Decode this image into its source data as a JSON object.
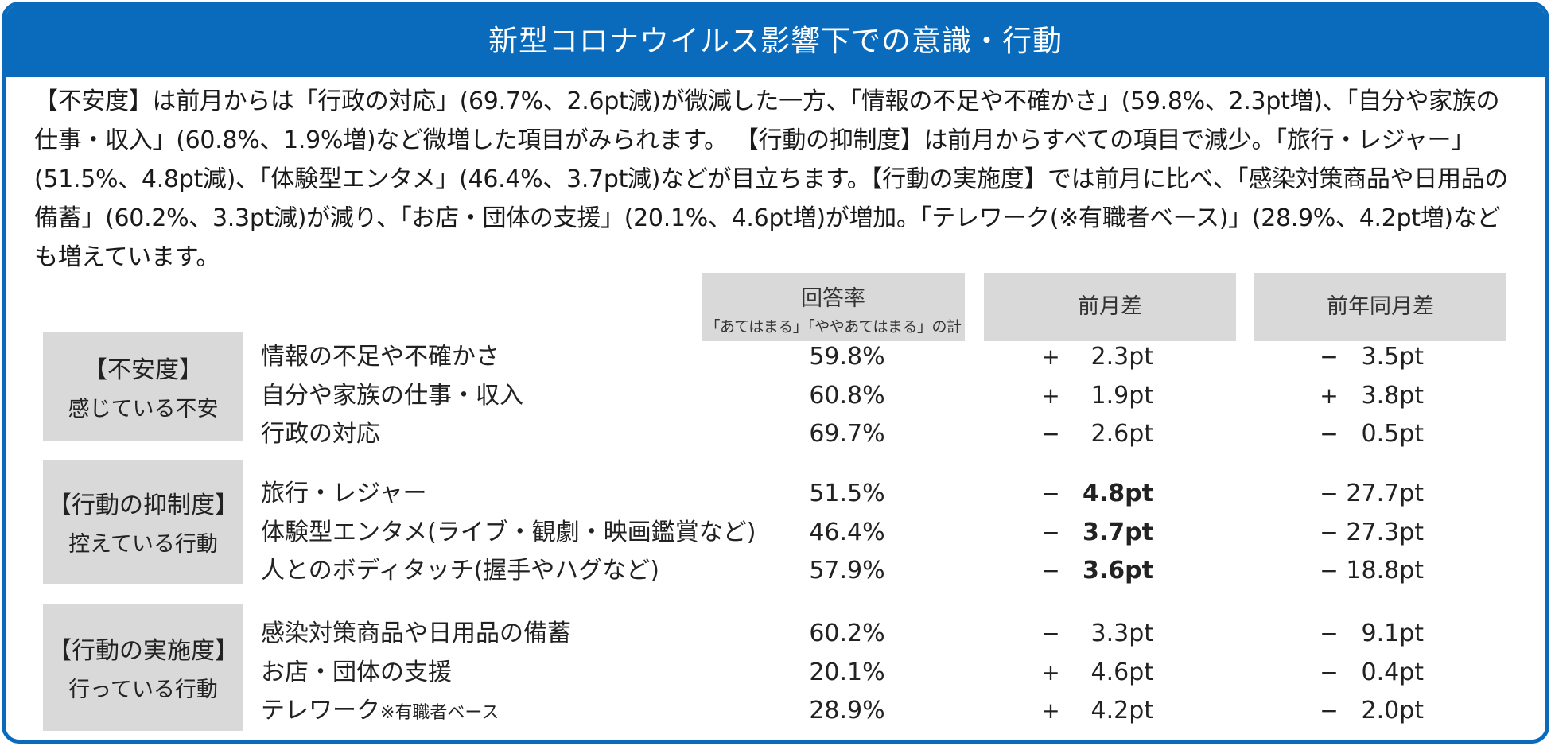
{
  "title": "新型コロナウイルス影響下での意識・行動",
  "summary": "【不安度】は前月からは「行政の対応」(69.7%、2.6pt減)が微減した一方、「情報の不足や不確かさ」(59.8%、2.3pt増)、「自分や家族の仕事・収入」(60.8%、1.9%増)など微増した項目がみられます。 【行動の抑制度】は前月からすべての項目で減少。「旅行・レジャー」(51.5%、4.8pt減)、「体験型エンタメ」(46.4%、3.7pt減)などが目立ちます。【行動の実施度】では前月に比べ、「感染対策商品や日用品の備蓄」(60.2%、3.3pt減)が減り、「お店・団体の支援」(20.1%、4.6pt増)が増加。「テレワーク(※有職者ベース)」(28.9%、4.2pt増)なども増えています。",
  "headers": {
    "rate": "回答率",
    "rate_sub": "「あてはまる」「ややあてはまる」の計",
    "diff": "前月差",
    "yoy": "前年同月差"
  },
  "categories": [
    {
      "title": "【不安度】",
      "sub": "感じている不安",
      "rows": [
        {
          "item": "情報の不足や不確かさ",
          "note": "",
          "rate": "59.8%",
          "diff_sign": "+",
          "diff": "2.3pt",
          "yoy_sign": "−",
          "yoy": "3.5pt"
        },
        {
          "item": "自分や家族の仕事・収入",
          "note": "",
          "rate": "60.8%",
          "diff_sign": "+",
          "diff": "1.9pt",
          "yoy_sign": "+",
          "yoy": "3.8pt"
        },
        {
          "item": "行政の対応",
          "note": "",
          "rate": "69.7%",
          "diff_sign": "−",
          "diff": "2.6pt",
          "yoy_sign": "−",
          "yoy": "0.5pt"
        }
      ]
    },
    {
      "title": "【行動の抑制度】",
      "sub": "控えている行動",
      "rows": [
        {
          "item": "旅行・レジャー",
          "note": "",
          "rate": "51.5%",
          "diff_sign": "−",
          "diff": "4.8pt",
          "yoy_sign": "−",
          "yoy": "27.7pt"
        },
        {
          "item": "体験型エンタメ(ライブ・観劇・映画鑑賞など)",
          "note": "",
          "rate": "46.4%",
          "diff_sign": "−",
          "diff": "3.7pt",
          "yoy_sign": "−",
          "yoy": "27.3pt"
        },
        {
          "item": "人とのボディタッチ(握手やハグなど)",
          "note": "",
          "rate": "57.9%",
          "diff_sign": "−",
          "diff": "3.6pt",
          "yoy_sign": "−",
          "yoy": "18.8pt"
        }
      ]
    },
    {
      "title": "【行動の実施度】",
      "sub": "行っている行動",
      "rows": [
        {
          "item": "感染対策商品や日用品の備蓄",
          "note": "",
          "rate": "60.2%",
          "diff_sign": "−",
          "diff": "3.3pt",
          "yoy_sign": "−",
          "yoy": "9.1pt"
        },
        {
          "item": "お店・団体の支援",
          "note": "",
          "rate": "20.1%",
          "diff_sign": "+",
          "diff": "4.6pt",
          "yoy_sign": "−",
          "yoy": "0.4pt"
        },
        {
          "item": "テレワーク",
          "note": "※有職者ベース",
          "rate": "28.9%",
          "diff_sign": "+",
          "diff": "4.2pt",
          "yoy_sign": "−",
          "yoy": "2.0pt"
        }
      ]
    }
  ]
}
